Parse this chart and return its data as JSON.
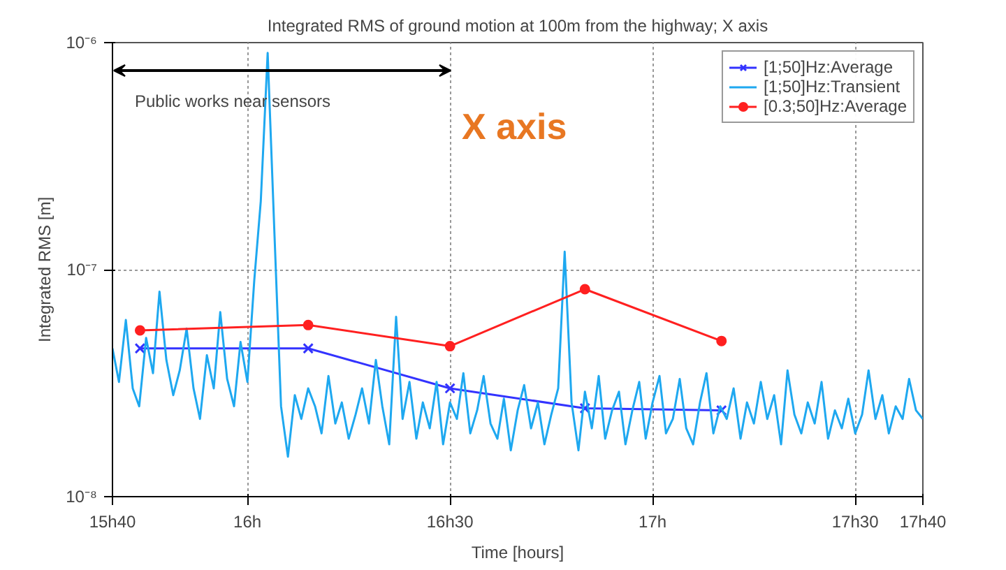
{
  "chart_data": {
    "type": "line",
    "title": "Integrated RMS of ground motion at 100m from the highway; X axis",
    "xlabel": "Time [hours]",
    "ylabel": "Integrated RMS [m]",
    "log": "y",
    "grid": true,
    "legend": "top right",
    "xlim": [
      15.667,
      17.667
    ],
    "xticks": [
      {
        "value": 15.667,
        "label": "15h40"
      },
      {
        "value": 16,
        "label": "16h"
      },
      {
        "value": 16.5,
        "label": "16h30"
      },
      {
        "value": 17,
        "label": "17h"
      },
      {
        "value": 17.5,
        "label": "17h30"
      },
      {
        "value": 17.667,
        "label": "17h40"
      }
    ],
    "ylim": [
      1e-08,
      1e-06
    ],
    "yticks": [
      {
        "value": 1e-08,
        "label": "10⁻⁸"
      },
      {
        "value": 1e-07,
        "label": "10⁻⁷"
      },
      {
        "value": 1e-06,
        "label": "10⁻⁶"
      }
    ],
    "annotations": [
      "Public works near sensors",
      "X axis"
    ],
    "series": [
      {
        "name": "[1;50]Hz:Average",
        "color": "#3333ff",
        "marker": "cross",
        "x": [
          15.735,
          16.15,
          16.5,
          16.833,
          17.17
        ],
        "values": [
          4.5e-08,
          4.5e-08,
          3e-08,
          2.45e-08,
          2.4e-08
        ]
      },
      {
        "name": "[1;50]Hz:Transient",
        "color": "#1ea8f0",
        "marker": "none",
        "x": [
          15.667,
          15.683,
          15.7,
          15.717,
          15.733,
          15.75,
          15.767,
          15.783,
          15.8,
          15.817,
          15.833,
          15.85,
          15.867,
          15.883,
          15.9,
          15.917,
          15.933,
          15.95,
          15.967,
          15.983,
          16.0,
          16.017,
          16.033,
          16.05,
          16.067,
          16.083,
          16.1,
          16.117,
          16.133,
          16.15,
          16.167,
          16.183,
          16.2,
          16.217,
          16.233,
          16.25,
          16.267,
          16.283,
          16.3,
          16.317,
          16.333,
          16.35,
          16.367,
          16.383,
          16.4,
          16.417,
          16.433,
          16.45,
          16.467,
          16.483,
          16.5,
          16.517,
          16.533,
          16.55,
          16.567,
          16.583,
          16.6,
          16.617,
          16.633,
          16.65,
          16.667,
          16.683,
          16.7,
          16.717,
          16.733,
          16.75,
          16.767,
          16.783,
          16.8,
          16.817,
          16.833,
          16.85,
          16.867,
          16.883,
          16.9,
          16.917,
          16.933,
          16.95,
          16.967,
          16.983,
          17.0,
          17.017,
          17.033,
          17.05,
          17.067,
          17.083,
          17.1,
          17.117,
          17.133,
          17.15,
          17.167,
          17.183,
          17.2,
          17.217,
          17.233,
          17.25,
          17.267,
          17.283,
          17.3,
          17.317,
          17.333,
          17.35,
          17.367,
          17.383,
          17.4,
          17.417,
          17.433,
          17.45,
          17.467,
          17.483,
          17.5,
          17.517,
          17.533,
          17.55,
          17.567,
          17.583,
          17.6,
          17.617,
          17.633,
          17.65,
          17.667
        ],
        "values": [
          4.5e-08,
          3.2e-08,
          6e-08,
          3e-08,
          2.5e-08,
          5e-08,
          3.5e-08,
          8e-08,
          4e-08,
          2.8e-08,
          3.6e-08,
          5.5e-08,
          3e-08,
          2.2e-08,
          4.2e-08,
          3e-08,
          6.5e-08,
          3.3e-08,
          2.5e-08,
          4.8e-08,
          3.2e-08,
          9e-08,
          2e-07,
          9e-07,
          1.4e-07,
          2.5e-08,
          1.5e-08,
          2.8e-08,
          2.2e-08,
          3e-08,
          2.5e-08,
          1.9e-08,
          3.4e-08,
          2.1e-08,
          2.6e-08,
          1.8e-08,
          2.3e-08,
          3e-08,
          2.1e-08,
          4e-08,
          2.5e-08,
          1.7e-08,
          6.2e-08,
          2.2e-08,
          3.2e-08,
          1.8e-08,
          2.6e-08,
          2e-08,
          3.2e-08,
          1.7e-08,
          2.6e-08,
          2.2e-08,
          3.5e-08,
          1.9e-08,
          2.4e-08,
          3.4e-08,
          2.1e-08,
          1.8e-08,
          2.7e-08,
          1.6e-08,
          2.4e-08,
          3.1e-08,
          2e-08,
          2.6e-08,
          1.7e-08,
          2.3e-08,
          3e-08,
          1.2e-07,
          2.6e-08,
          1.6e-08,
          2.9e-08,
          2e-08,
          3.4e-08,
          1.8e-08,
          2.4e-08,
          2.9e-08,
          1.7e-08,
          2.4e-08,
          3.2e-08,
          1.8e-08,
          2.6e-08,
          3.4e-08,
          1.9e-08,
          2.2e-08,
          3.3e-08,
          2e-08,
          1.7e-08,
          2.6e-08,
          3.5e-08,
          1.9e-08,
          2.5e-08,
          2.2e-08,
          3e-08,
          1.8e-08,
          2.6e-08,
          2.1e-08,
          3.2e-08,
          2.2e-08,
          2.8e-08,
          1.7e-08,
          3.6e-08,
          2.3e-08,
          1.9e-08,
          2.6e-08,
          2.1e-08,
          3.2e-08,
          1.8e-08,
          2.4e-08,
          2e-08,
          2.7e-08,
          1.9e-08,
          2.3e-08,
          3.6e-08,
          2.2e-08,
          2.8e-08,
          1.9e-08,
          2.5e-08,
          2.2e-08,
          3.3e-08,
          2.4e-08,
          2.2e-08
        ]
      },
      {
        "name": "[0.3;50]Hz:Average",
        "color": "#ff2020",
        "marker": "circle",
        "x": [
          15.735,
          16.15,
          16.5,
          16.833,
          17.17
        ],
        "values": [
          5.4e-08,
          5.7e-08,
          4.6e-08,
          8.2e-08,
          4.85e-08
        ]
      }
    ]
  }
}
